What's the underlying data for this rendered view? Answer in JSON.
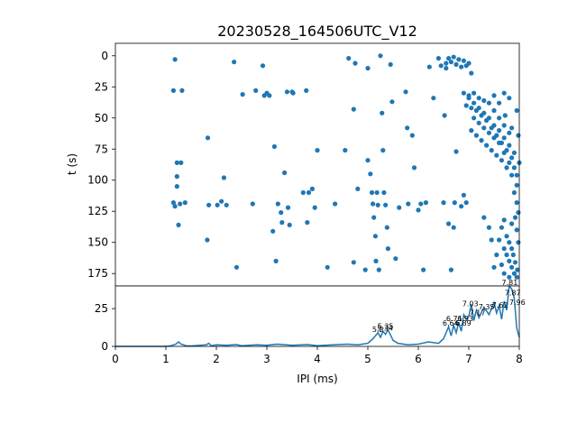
{
  "chart_data": [
    {
      "type": "scatter",
      "title": "20230528_164506UTC_V12",
      "ylabel": "t (s)",
      "xlim": [
        0,
        8
      ],
      "ylim": [
        185,
        -10
      ],
      "y_inverted": true,
      "y_ticks": [
        "0",
        "25",
        "50",
        "75",
        "100",
        "125",
        "150",
        "175"
      ],
      "color": "#1f77b4",
      "points": [
        [
          1.18,
          3
        ],
        [
          1.15,
          28
        ],
        [
          1.32,
          28
        ],
        [
          1.22,
          86
        ],
        [
          1.3,
          86
        ],
        [
          1.22,
          97
        ],
        [
          1.22,
          105
        ],
        [
          1.15,
          118
        ],
        [
          1.18,
          121
        ],
        [
          1.28,
          119
        ],
        [
          1.38,
          118
        ],
        [
          1.25,
          136
        ],
        [
          1.83,
          66
        ],
        [
          1.85,
          120
        ],
        [
          1.82,
          148
        ],
        [
          2.02,
          120
        ],
        [
          2.1,
          117
        ],
        [
          2.15,
          98
        ],
        [
          2.2,
          120
        ],
        [
          2.35,
          5
        ],
        [
          2.4,
          170
        ],
        [
          2.52,
          31
        ],
        [
          2.72,
          119
        ],
        [
          2.78,
          28
        ],
        [
          2.92,
          8
        ],
        [
          2.95,
          32
        ],
        [
          3.0,
          30
        ],
        [
          3.05,
          32
        ],
        [
          3.12,
          141
        ],
        [
          3.15,
          73
        ],
        [
          3.18,
          165
        ],
        [
          3.22,
          119
        ],
        [
          3.28,
          126
        ],
        [
          3.3,
          134
        ],
        [
          3.35,
          94
        ],
        [
          3.4,
          29
        ],
        [
          3.42,
          122
        ],
        [
          3.45,
          136
        ],
        [
          3.5,
          29
        ],
        [
          3.52,
          30
        ],
        [
          3.72,
          110
        ],
        [
          3.78,
          28
        ],
        [
          3.8,
          134
        ],
        [
          3.83,
          110
        ],
        [
          3.9,
          107
        ],
        [
          3.95,
          122
        ],
        [
          4.0,
          76
        ],
        [
          4.2,
          170
        ],
        [
          4.35,
          119
        ],
        [
          4.55,
          76
        ],
        [
          4.62,
          2
        ],
        [
          4.72,
          166
        ],
        [
          4.72,
          43
        ],
        [
          4.75,
          6
        ],
        [
          4.8,
          107
        ],
        [
          4.95,
          172
        ],
        [
          5.0,
          10
        ],
        [
          5.0,
          84
        ],
        [
          5.05,
          95
        ],
        [
          5.08,
          110
        ],
        [
          5.1,
          119
        ],
        [
          5.12,
          130
        ],
        [
          5.15,
          145
        ],
        [
          5.16,
          165
        ],
        [
          5.18,
          110
        ],
        [
          5.2,
          120
        ],
        [
          5.22,
          172
        ],
        [
          5.25,
          0
        ],
        [
          5.28,
          46
        ],
        [
          5.3,
          76
        ],
        [
          5.32,
          110
        ],
        [
          5.35,
          120
        ],
        [
          5.38,
          138
        ],
        [
          5.4,
          155
        ],
        [
          5.45,
          7
        ],
        [
          5.48,
          37
        ],
        [
          5.55,
          163
        ],
        [
          5.62,
          122
        ],
        [
          5.75,
          29
        ],
        [
          5.78,
          58
        ],
        [
          5.8,
          119
        ],
        [
          5.88,
          64
        ],
        [
          5.92,
          90
        ],
        [
          6.0,
          124
        ],
        [
          6.05,
          119
        ],
        [
          6.1,
          172
        ],
        [
          6.15,
          118
        ],
        [
          6.22,
          9
        ],
        [
          6.3,
          34
        ],
        [
          6.5,
          118
        ],
        [
          6.52,
          48
        ],
        [
          6.6,
          135
        ],
        [
          6.65,
          172
        ],
        [
          6.7,
          138
        ],
        [
          6.72,
          118
        ],
        [
          6.75,
          77
        ],
        [
          6.85,
          121
        ],
        [
          6.95,
          118
        ],
        [
          6.9,
          112
        ],
        [
          6.45,
          8
        ],
        [
          6.55,
          6
        ],
        [
          6.65,
          5
        ],
        [
          6.75,
          7
        ],
        [
          6.85,
          9
        ],
        [
          6.95,
          8
        ],
        [
          6.6,
          2
        ],
        [
          6.7,
          1
        ],
        [
          6.8,
          3
        ],
        [
          6.9,
          4
        ],
        [
          7.0,
          6
        ],
        [
          7.05,
          14
        ],
        [
          6.4,
          2
        ],
        [
          6.55,
          10
        ],
        [
          6.9,
          30
        ],
        [
          7.0,
          32
        ],
        [
          7.1,
          30
        ],
        [
          7.2,
          34
        ],
        [
          7.3,
          36
        ],
        [
          7.4,
          38
        ],
        [
          7.5,
          44
        ],
        [
          7.6,
          50
        ],
        [
          7.7,
          56
        ],
        [
          7.8,
          62
        ],
        [
          6.95,
          40
        ],
        [
          7.05,
          42
        ],
        [
          7.15,
          44
        ],
        [
          7.25,
          48
        ],
        [
          7.35,
          52
        ],
        [
          7.45,
          58
        ],
        [
          7.55,
          64
        ],
        [
          7.65,
          70
        ],
        [
          7.75,
          76
        ],
        [
          7.85,
          82
        ],
        [
          7.9,
          90
        ],
        [
          7.1,
          50
        ],
        [
          7.2,
          54
        ],
        [
          7.3,
          58
        ],
        [
          7.4,
          62
        ],
        [
          7.5,
          66
        ],
        [
          7.6,
          70
        ],
        [
          7.7,
          78
        ],
        [
          7.8,
          86
        ],
        [
          7.95,
          96
        ],
        [
          7.05,
          60
        ],
        [
          7.15,
          64
        ],
        [
          7.25,
          68
        ],
        [
          7.35,
          72
        ],
        [
          7.45,
          76
        ],
        [
          7.55,
          80
        ],
        [
          7.65,
          84
        ],
        [
          7.75,
          90
        ],
        [
          7.85,
          96
        ],
        [
          7.95,
          104
        ],
        [
          7.0,
          34
        ],
        [
          7.1,
          38
        ],
        [
          7.2,
          42
        ],
        [
          7.3,
          46
        ],
        [
          7.4,
          50
        ],
        [
          7.5,
          56
        ],
        [
          7.6,
          60
        ],
        [
          7.7,
          66
        ],
        [
          7.8,
          72
        ],
        [
          7.9,
          78
        ],
        [
          8.0,
          86
        ],
        [
          7.9,
          110
        ],
        [
          7.95,
          118
        ],
        [
          7.98,
          126
        ],
        [
          7.92,
          130
        ],
        [
          7.95,
          140
        ],
        [
          7.98,
          150
        ],
        [
          7.88,
          160
        ],
        [
          7.92,
          166
        ],
        [
          7.96,
          172
        ],
        [
          7.75,
          145
        ],
        [
          7.8,
          150
        ],
        [
          7.85,
          155
        ],
        [
          7.75,
          160
        ],
        [
          7.8,
          165
        ],
        [
          7.85,
          170
        ],
        [
          7.9,
          175
        ],
        [
          7.95,
          178
        ],
        [
          7.7,
          132
        ],
        [
          7.85,
          135
        ],
        [
          7.65,
          138
        ],
        [
          7.7,
          155
        ],
        [
          7.6,
          148
        ],
        [
          7.55,
          160
        ],
        [
          7.65,
          168
        ],
        [
          7.7,
          175
        ],
        [
          7.8,
          178
        ],
        [
          7.5,
          170
        ],
        [
          7.45,
          148
        ],
        [
          7.4,
          138
        ],
        [
          7.3,
          130
        ],
        [
          7.7,
          30
        ],
        [
          7.8,
          34
        ],
        [
          7.95,
          44
        ],
        [
          7.5,
          32
        ],
        [
          7.6,
          38
        ],
        [
          7.72,
          48
        ],
        [
          7.85,
          58
        ],
        [
          7.98,
          64
        ]
      ]
    },
    {
      "type": "line",
      "xlabel": "IPI (ms)",
      "xlim": [
        0,
        8
      ],
      "ylim": [
        0,
        40
      ],
      "x_ticks": [
        "0",
        "1",
        "2",
        "3",
        "4",
        "5",
        "6",
        "7",
        "8"
      ],
      "y_ticks": [
        "0",
        "25"
      ],
      "color": "#1f77b4",
      "x": [
        0.0,
        0.5,
        1.0,
        1.1,
        1.2,
        1.25,
        1.3,
        1.4,
        1.5,
        1.8,
        1.85,
        1.9,
        2.0,
        2.2,
        2.4,
        2.5,
        2.8,
        3.0,
        3.2,
        3.5,
        3.8,
        4.0,
        4.3,
        4.6,
        4.8,
        5.0,
        5.1,
        5.2,
        5.25,
        5.3,
        5.35,
        5.4,
        5.5,
        5.6,
        5.8,
        6.0,
        6.2,
        6.4,
        6.5,
        6.6,
        6.65,
        6.7,
        6.75,
        6.8,
        6.85,
        6.9,
        6.95,
        7.0,
        7.05,
        7.1,
        7.15,
        7.2,
        7.3,
        7.4,
        7.5,
        7.55,
        7.6,
        7.65,
        7.7,
        7.75,
        7.8,
        7.85,
        7.9,
        7.95,
        8.0
      ],
      "y": [
        0,
        0,
        0,
        0.5,
        1.5,
        3,
        1.5,
        0.5,
        0.3,
        1,
        2,
        0.5,
        1,
        0.8,
        1.2,
        0.5,
        1,
        0.8,
        1.5,
        0.8,
        1.2,
        0.5,
        1,
        1.5,
        1,
        2,
        5,
        9,
        6,
        10,
        8,
        11,
        4,
        2,
        1,
        1.5,
        3,
        2,
        5,
        13,
        7,
        14,
        9,
        16,
        10,
        21,
        18,
        20,
        28,
        17,
        24,
        19,
        26,
        21,
        29,
        22,
        27,
        18,
        30,
        24,
        40,
        38,
        32,
        12,
        6
      ],
      "peak_labels": [
        {
          "text": "5.2",
          "x": 5.2,
          "y": 9
        },
        {
          "text": "5.35",
          "x": 5.35,
          "y": 11
        },
        {
          "text": "5.34",
          "x": 5.34,
          "y": 10
        },
        {
          "text": "6.64",
          "x": 6.64,
          "y": 13
        },
        {
          "text": "6.71",
          "x": 6.71,
          "y": 16
        },
        {
          "text": "6.89",
          "x": 6.89,
          "y": 13
        },
        {
          "text": "6.93",
          "x": 6.93,
          "y": 16
        },
        {
          "text": "7.03",
          "x": 7.03,
          "y": 26
        },
        {
          "text": "7.17",
          "x": 7.17,
          "y": 20
        },
        {
          "text": "7.35",
          "x": 7.35,
          "y": 24
        },
        {
          "text": "7.62",
          "x": 7.62,
          "y": 25
        },
        {
          "text": "7.81",
          "x": 7.81,
          "y": 40
        },
        {
          "text": "7.87",
          "x": 7.87,
          "y": 33
        },
        {
          "text": "7.96",
          "x": 7.96,
          "y": 27
        }
      ]
    }
  ]
}
